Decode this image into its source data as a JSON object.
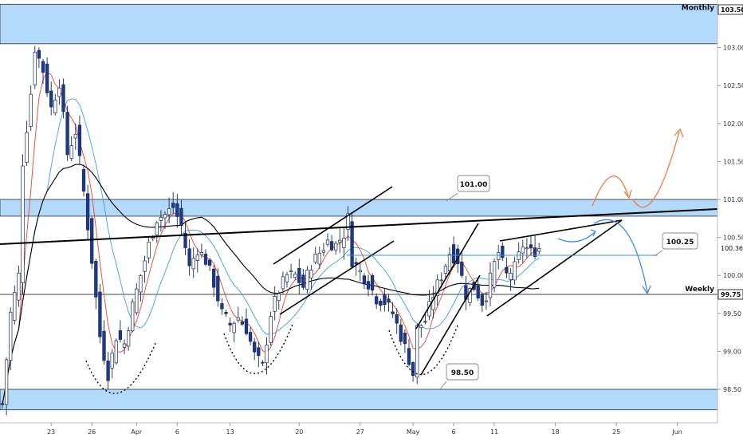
{
  "chart_data": {
    "type": "candlestick",
    "y_axis": {
      "side": "right",
      "range": [
        98.2,
        103.55
      ],
      "ticks": [
        "103.50",
        "103.00",
        "102.50",
        "102.00",
        "101.50",
        "101.00",
        "100.50",
        "100.00",
        "99.50",
        "99.00",
        "98.50"
      ],
      "tick_values": [
        103.5,
        103.0,
        102.5,
        102.0,
        101.5,
        101.0,
        100.5,
        100.0,
        99.5,
        99.0,
        98.5
      ]
    },
    "x_axis": {
      "labels": [
        "23",
        "26",
        "Apr",
        "6",
        "13",
        "20",
        "27",
        "May",
        "6",
        "11",
        "18",
        "25",
        "Jun"
      ],
      "label_bars": [
        12,
        22,
        33,
        43,
        56,
        73,
        88,
        101,
        111,
        121,
        136,
        151,
        166
      ]
    },
    "price_tags": [
      {
        "label": "103.50",
        "value": 103.5,
        "style": "box"
      },
      {
        "label": "100.36",
        "value": 100.36,
        "style": "plain"
      },
      {
        "label": "99.75",
        "value": 99.75,
        "style": "box"
      }
    ],
    "zones": [
      {
        "name": "Monthly",
        "from": 103.05,
        "to": 103.57
      },
      {
        "name": "",
        "from": 100.78,
        "to": 101.0
      },
      {
        "name": "",
        "from": 98.23,
        "to": 98.5
      }
    ],
    "horizontal_lines": [
      {
        "label": "Weekly",
        "value": 99.75
      }
    ],
    "callouts": [
      {
        "text": "101.00",
        "value": 101.0
      },
      {
        "text": "100.25",
        "value": 100.25
      },
      {
        "text": "98.50",
        "value": 98.5
      }
    ],
    "waypoints": [
      [
        0,
        98.3
      ],
      [
        2,
        99.5
      ],
      [
        4,
        100.0
      ],
      [
        5,
        101.5
      ],
      [
        7,
        102.4
      ],
      [
        8,
        103.0
      ],
      [
        10,
        102.7
      ],
      [
        12,
        102.2
      ],
      [
        14,
        102.55
      ],
      [
        16,
        101.6
      ],
      [
        18,
        101.9
      ],
      [
        20,
        101.1
      ],
      [
        22,
        100.2
      ],
      [
        24,
        99.2
      ],
      [
        26,
        98.7
      ],
      [
        28,
        99.2
      ],
      [
        30,
        99.1
      ],
      [
        32,
        99.6
      ],
      [
        34,
        100.0
      ],
      [
        36,
        100.4
      ],
      [
        38,
        100.75
      ],
      [
        40,
        100.8
      ],
      [
        42,
        100.9
      ],
      [
        44,
        100.65
      ],
      [
        46,
        100.1
      ],
      [
        48,
        100.35
      ],
      [
        50,
        100.2
      ],
      [
        52,
        99.9
      ],
      [
        54,
        99.5
      ],
      [
        56,
        99.35
      ],
      [
        58,
        99.45
      ],
      [
        60,
        99.3
      ],
      [
        62,
        98.95
      ],
      [
        64,
        98.8
      ],
      [
        66,
        99.5
      ],
      [
        68,
        99.8
      ],
      [
        70,
        100.0
      ],
      [
        72,
        100.0
      ],
      [
        74,
        99.85
      ],
      [
        76,
        100.15
      ],
      [
        78,
        100.3
      ],
      [
        80,
        100.45
      ],
      [
        82,
        100.4
      ],
      [
        84,
        100.55
      ],
      [
        85,
        100.75
      ],
      [
        86,
        100.2
      ],
      [
        88,
        100.05
      ],
      [
        90,
        99.9
      ],
      [
        92,
        99.7
      ],
      [
        94,
        99.65
      ],
      [
        96,
        99.5
      ],
      [
        98,
        99.2
      ],
      [
        100,
        98.9
      ],
      [
        101,
        98.7
      ],
      [
        102,
        99.3
      ],
      [
        104,
        99.4
      ],
      [
        106,
        99.75
      ],
      [
        108,
        100.0
      ],
      [
        110,
        100.3
      ],
      [
        112,
        100.2
      ],
      [
        114,
        99.75
      ],
      [
        116,
        99.85
      ],
      [
        118,
        99.65
      ],
      [
        119,
        99.75
      ],
      [
        121,
        100.15
      ],
      [
        122,
        100.3
      ],
      [
        124,
        100.0
      ],
      [
        126,
        100.1
      ],
      [
        128,
        100.4
      ],
      [
        130,
        100.3
      ],
      [
        132,
        100.36
      ]
    ],
    "moving_averages": [
      {
        "color": "#e8452c",
        "period": 5
      },
      {
        "color": "#3aa0e0",
        "period": 12
      },
      {
        "color": "#000000",
        "period": 45
      }
    ],
    "colors": {
      "candle_up": "#ffffff",
      "candle_down": "#1b3a8c",
      "zone_fill": "#b3d9fb",
      "trendline": "#000000",
      "projection_blue": "#3a8de0",
      "projection_orange": "#ef7b3e"
    }
  }
}
